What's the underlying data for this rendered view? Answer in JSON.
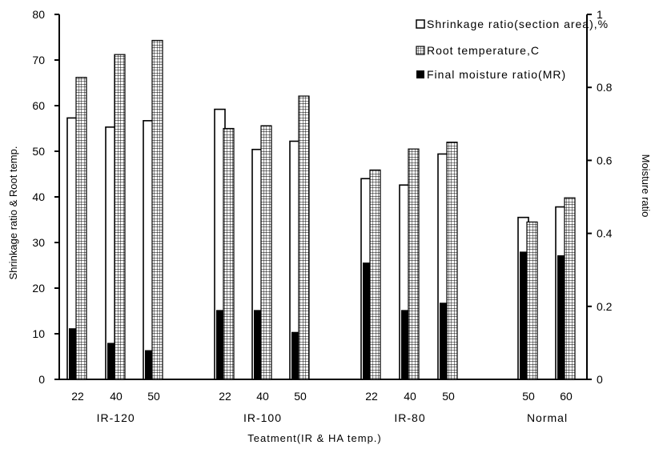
{
  "chart_data": {
    "type": "bar",
    "xlabel": "Teatment(IR & HA temp.)",
    "ylabel": "Shrinkage ratio & Root temp.",
    "y2label": "Moisture ratio",
    "ylim": [
      0,
      80
    ],
    "y2lim": [
      0,
      1
    ],
    "yticks": [
      "0",
      "10",
      "20",
      "30",
      "40",
      "50",
      "60",
      "70",
      "80"
    ],
    "y2ticks": [
      "0",
      "0.2",
      "0.4",
      "0.6",
      "0.8",
      "1"
    ],
    "grid": false,
    "legend_position": "top-right",
    "groups": [
      "IR-120",
      "IR-100",
      "IR-80",
      "Normal"
    ],
    "categories": [
      "22",
      "40",
      "50",
      "22",
      "40",
      "50",
      "22",
      "40",
      "50",
      "50",
      "60"
    ],
    "category_group": [
      0,
      0,
      0,
      1,
      1,
      1,
      2,
      2,
      2,
      3,
      3
    ],
    "series": [
      {
        "name": "Shrinkage ratio(section area),%",
        "axis": "left",
        "pattern": "white",
        "values": [
          57.3,
          55.3,
          56.7,
          59.2,
          50.4,
          52.2,
          44.0,
          42.6,
          49.4,
          35.5,
          37.8
        ]
      },
      {
        "name": "Root temperature,C",
        "axis": "left",
        "pattern": "grid",
        "values": [
          66.2,
          71.2,
          74.3,
          55.0,
          55.6,
          62.1,
          45.9,
          50.5,
          52.0,
          34.5,
          39.8
        ]
      },
      {
        "name": "Final moisture ratio(MR)",
        "axis": "right",
        "pattern": "black",
        "values": [
          0.14,
          0.1,
          0.08,
          0.19,
          0.19,
          0.13,
          0.32,
          0.19,
          0.21,
          0.35,
          0.34
        ]
      }
    ]
  }
}
